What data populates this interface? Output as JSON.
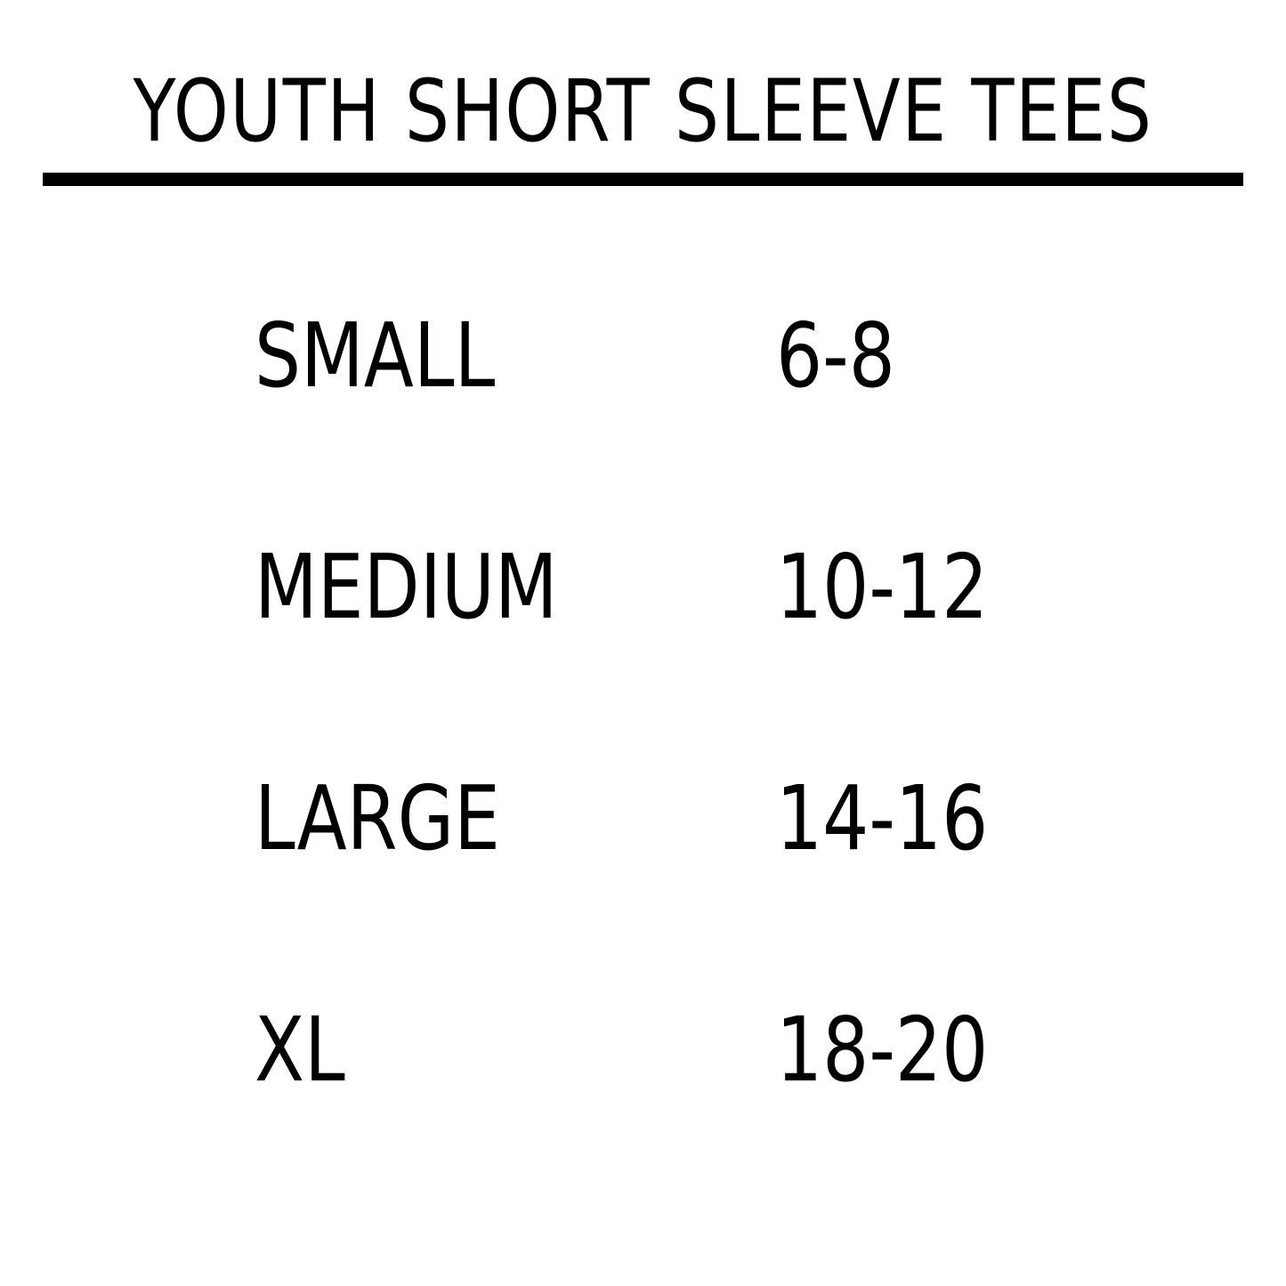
{
  "header": {
    "title": "YOUTH SHORT SLEEVE TEES"
  },
  "table": {
    "rows": [
      [
        "SMALL",
        "6-8"
      ],
      [
        "MEDIUM",
        "10-12"
      ],
      [
        "LARGE",
        "14-16"
      ],
      [
        "XL",
        "18-20"
      ]
    ]
  }
}
